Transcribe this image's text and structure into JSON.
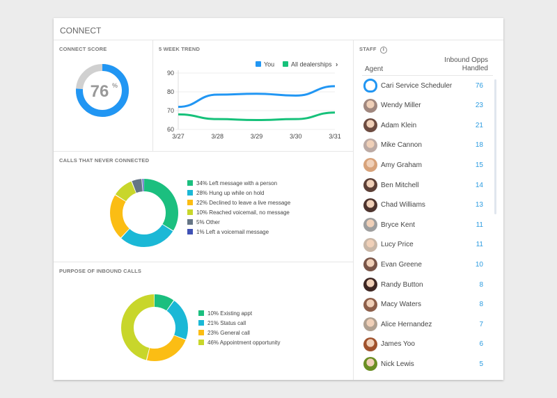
{
  "header": {
    "title": "CONNECT"
  },
  "connect_score": {
    "title": "CONNECT SCORE",
    "value": "76",
    "unit": "%",
    "fraction": 0.76,
    "color": "#2196f3",
    "track": "#d0d0d0"
  },
  "trend": {
    "title": "5 WEEK TREND",
    "chart_data": {
      "type": "line",
      "x": [
        "3/27",
        "3/28",
        "3/29",
        "3/30",
        "3/31"
      ],
      "ylim": [
        60,
        90
      ],
      "yticks": [
        "60",
        "70",
        "80",
        "90"
      ],
      "grid": true,
      "legend": "top-right",
      "series": [
        {
          "name": "You",
          "color": "#2196f3",
          "values": [
            72,
            78.5,
            79,
            78,
            83
          ]
        },
        {
          "name": "All dealerships",
          "color": "#16c17a",
          "values": [
            68,
            65.5,
            65,
            65.5,
            69
          ]
        }
      ]
    },
    "legend_more": "›"
  },
  "calls": {
    "title": "CALLS THAT NEVER CONNECTED",
    "chart_data": {
      "type": "pie",
      "values": [
        34,
        28,
        22,
        10,
        5,
        1
      ],
      "labels": [
        "34% Left message with a person",
        "28% Hung up while on hold",
        "22% Declined to leave a live message",
        "10% Reached voicemail, no message",
        "5% Other",
        "1% Left a voicemail message"
      ],
      "colors": [
        "#1bbf7f",
        "#1bb8d6",
        "#fbbd14",
        "#c8d62b",
        "#657585",
        "#3f51b5"
      ]
    }
  },
  "purpose": {
    "title": "PURPOSE OF INBOUND CALLS",
    "chart_data": {
      "type": "pie",
      "values": [
        10,
        21,
        23,
        46
      ],
      "labels": [
        "10% Existing appt",
        "21% Status call",
        "23% General call",
        "46% Appointment opportunity"
      ],
      "colors": [
        "#1bbf7f",
        "#1bb8d6",
        "#fbbd14",
        "#c8d62b"
      ]
    }
  },
  "staff": {
    "title": "STAFF",
    "info_icon": "info-icon",
    "col_agent": "Agent",
    "col_opps_1": "Inbound Opps",
    "col_opps_2": "Handled",
    "rows": [
      {
        "name": "Cari Service Scheduler",
        "value": "76",
        "icon": "headset-bot-icon"
      },
      {
        "name": "Wendy Miller",
        "value": "23"
      },
      {
        "name": "Adam Klein",
        "value": "21"
      },
      {
        "name": "Mike Cannon",
        "value": "18"
      },
      {
        "name": "Amy Graham",
        "value": "15"
      },
      {
        "name": "Ben Mitchell",
        "value": "14"
      },
      {
        "name": "Chad Williams",
        "value": "13"
      },
      {
        "name": "Bryce Kent",
        "value": "11"
      },
      {
        "name": "Lucy Price",
        "value": "11"
      },
      {
        "name": "Evan Greene",
        "value": "10"
      },
      {
        "name": "Randy Button",
        "value": "8"
      },
      {
        "name": "Macy Waters",
        "value": "8"
      },
      {
        "name": "Alice Hernandez",
        "value": "7"
      },
      {
        "name": "James Yoo",
        "value": "6"
      },
      {
        "name": "Nick Lewis",
        "value": "5"
      }
    ]
  }
}
